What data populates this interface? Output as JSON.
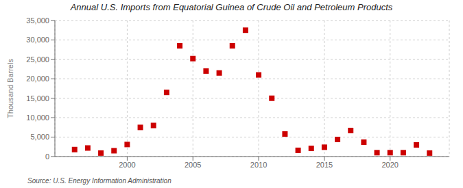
{
  "chart_data": {
    "type": "scatter",
    "title": "Annual U.S. Imports from Equatorial Guinea of Crude Oil and Petroleum Products",
    "y_label": "Thousand Barrels",
    "annotations": [
      "Source: U.S. Energy Information Administration"
    ],
    "x": [
      1996,
      1997,
      1998,
      1999,
      2000,
      2001,
      2002,
      2003,
      2004,
      2005,
      2006,
      2007,
      2008,
      2009,
      2010,
      2011,
      2012,
      2013,
      2014,
      2015,
      2016,
      2017,
      2018,
      2019,
      2020,
      2021,
      2022,
      2023
    ],
    "values": [
      1800,
      2200,
      900,
      1500,
      3100,
      7500,
      8000,
      16500,
      28500,
      25200,
      22000,
      21500,
      28500,
      32500,
      21000,
      15000,
      5800,
      1600,
      2100,
      2400,
      4400,
      6700,
      3700,
      1000,
      1000,
      1000,
      3000,
      900
    ],
    "color": "#cc0000",
    "marker": "square",
    "xlim": [
      1994.5,
      2024.5
    ],
    "xticks": [
      2000,
      2005,
      2010,
      2015,
      2020
    ],
    "ylim": [
      0,
      35000
    ],
    "yticks": [
      0,
      {
        "value": 5000,
        "label": "5,000"
      },
      {
        "value": 10000,
        "label": "10,000"
      },
      {
        "value": 15000,
        "label": "15,000"
      },
      {
        "value": 20000,
        "label": "20,000"
      },
      {
        "value": 25000,
        "label": "25,000"
      },
      {
        "value": 30000,
        "label": "30,000"
      },
      {
        "value": 35000,
        "label": "35,000"
      }
    ],
    "grid": true
  }
}
